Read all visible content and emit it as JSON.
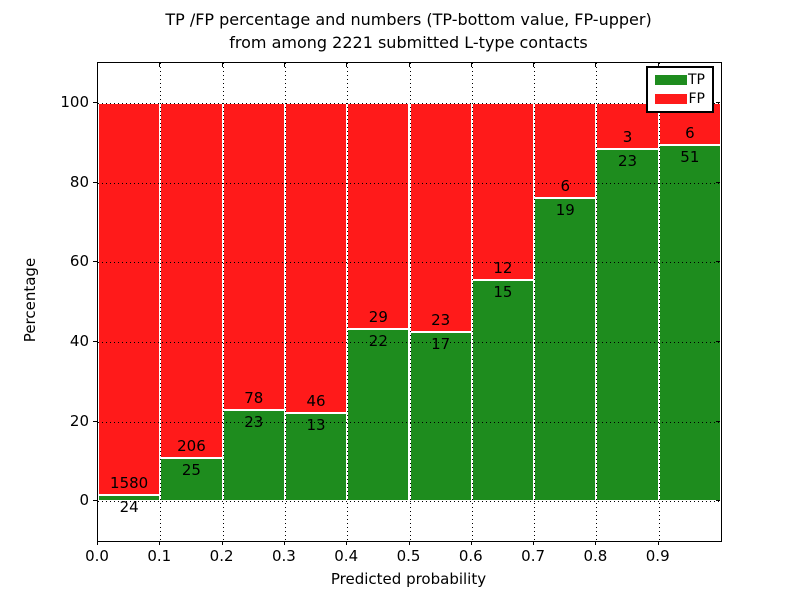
{
  "title": {
    "line1": "TP /FP percentage and numbers (TP-bottom value, FP-upper)",
    "line2": "from among 2221 submitted L-type contacts"
  },
  "axes": {
    "xlabel": "Predicted probability",
    "ylabel": "Percentage",
    "x_tick_labels": [
      "0.0",
      "0.1",
      "0.2",
      "0.3",
      "0.4",
      "0.5",
      "0.6",
      "0.7",
      "0.8",
      "0.9"
    ],
    "y_tick_labels": [
      "0",
      "20",
      "40",
      "60",
      "80",
      "100"
    ],
    "y_tick_values": [
      0,
      20,
      40,
      60,
      80,
      100
    ]
  },
  "legend": {
    "items": [
      {
        "label": "TP",
        "color": "#1e8c1e"
      },
      {
        "label": "FP",
        "color": "#ff1a1a"
      }
    ]
  },
  "chart_data": {
    "type": "bar",
    "stacked": true,
    "normalized_to_percent": true,
    "title": "TP /FP percentage and numbers (TP-bottom value, FP-upper) from among 2221 submitted L-type contacts",
    "xlabel": "Predicted probability",
    "ylabel": "Percentage",
    "total_contacts": 2221,
    "bin_starts": [
      0.0,
      0.1,
      0.2,
      0.3,
      0.4,
      0.5,
      0.6,
      0.7,
      0.8,
      0.9
    ],
    "bin_width": 0.1,
    "series": [
      {
        "name": "TP",
        "color": "#1e8c1e",
        "counts": [
          24,
          25,
          23,
          13,
          22,
          17,
          15,
          19,
          23,
          51
        ]
      },
      {
        "name": "FP",
        "color": "#ff1a1a",
        "counts": [
          1580,
          206,
          78,
          46,
          29,
          23,
          12,
          6,
          3,
          6
        ]
      }
    ],
    "tp_percent_of_bin": [
      1.5,
      10.8,
      22.8,
      22.0,
      43.1,
      42.5,
      55.6,
      76.0,
      88.5,
      89.5
    ],
    "xlim": [
      0,
      1.0
    ],
    "ylim": [
      -10,
      110
    ],
    "grid": "dotted",
    "legend_position": "upper right"
  }
}
